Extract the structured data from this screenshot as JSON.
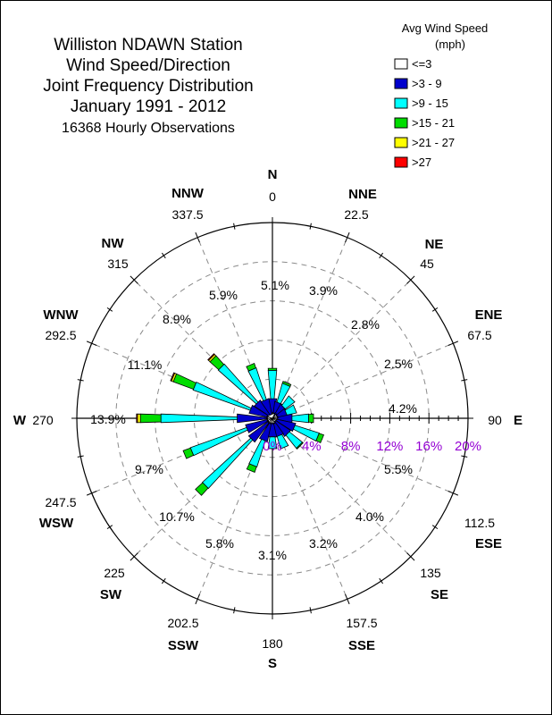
{
  "title": {
    "lines": [
      "Williston NDAWN Station",
      "Wind Speed/Direction",
      "Joint Frequency Distribution",
      "January 1991 - 2012",
      "16368 Hourly Observations"
    ]
  },
  "legend": {
    "title_lines": [
      "Avg Wind Speed",
      "(mph)"
    ],
    "items": [
      {
        "label": "<=3",
        "color": "#ffffff"
      },
      {
        "label": ">3 - 9",
        "color": "#0000cc"
      },
      {
        "label": ">9 - 15",
        "color": "#00ffff"
      },
      {
        "label": ">15 - 21",
        "color": "#00dd00"
      },
      {
        "label": ">21 - 27",
        "color": "#ffff00"
      },
      {
        "label": ">27",
        "color": "#ff0000"
      }
    ]
  },
  "chart_data": {
    "type": "wind-rose",
    "rmax": 20,
    "rings": [
      4,
      8,
      12,
      16,
      20
    ],
    "scale_labels": [
      "0%",
      "4%",
      "8%",
      "12%",
      "16%",
      "20%"
    ],
    "directions": [
      {
        "abbr": "N",
        "deg": "0",
        "angle": 0,
        "total_label": "5.1%",
        "segments": [
          0.4,
          1.6,
          2.9,
          0.2,
          0.0,
          0.0
        ]
      },
      {
        "abbr": "NNE",
        "deg": "22.5",
        "angle": 22.5,
        "total_label": "3.9%",
        "segments": [
          0.3,
          1.4,
          2.0,
          0.2,
          0.0,
          0.0
        ]
      },
      {
        "abbr": "NE",
        "deg": "45",
        "angle": 45,
        "total_label": "2.8%",
        "segments": [
          0.3,
          1.3,
          1.2,
          0.0,
          0.0,
          0.0
        ]
      },
      {
        "abbr": "ENE",
        "deg": "67.5",
        "angle": 67.5,
        "total_label": "2.5%",
        "segments": [
          0.3,
          1.2,
          1.0,
          0.0,
          0.0,
          0.0
        ]
      },
      {
        "abbr": "E",
        "deg": "90",
        "angle": 90,
        "total_label": "4.2%",
        "segments": [
          0.4,
          1.6,
          1.7,
          0.5,
          0.0,
          0.0
        ]
      },
      {
        "abbr": "ESE",
        "deg": "112.5",
        "angle": 112.5,
        "total_label": "5.5%",
        "segments": [
          0.4,
          2.0,
          2.6,
          0.5,
          0.0,
          0.0
        ]
      },
      {
        "abbr": "SE",
        "deg": "135",
        "angle": 135,
        "total_label": "4.0%",
        "segments": [
          0.4,
          1.8,
          1.7,
          0.1,
          0.0,
          0.0
        ]
      },
      {
        "abbr": "SSE",
        "deg": "157.5",
        "angle": 157.5,
        "total_label": "3.2%",
        "segments": [
          0.3,
          1.6,
          1.3,
          0.0,
          0.0,
          0.0
        ]
      },
      {
        "abbr": "S",
        "deg": "180",
        "angle": 180,
        "total_label": "3.1%",
        "segments": [
          0.3,
          1.6,
          1.2,
          0.0,
          0.0,
          0.0
        ]
      },
      {
        "abbr": "SSW",
        "deg": "202.5",
        "angle": 202.5,
        "total_label": "5.8%",
        "segments": [
          0.4,
          2.0,
          2.8,
          0.6,
          0.0,
          0.0
        ]
      },
      {
        "abbr": "SW",
        "deg": "225",
        "angle": 225,
        "total_label": "10.7%",
        "segments": [
          0.4,
          2.6,
          6.7,
          1.0,
          0.0,
          0.0
        ]
      },
      {
        "abbr": "WSW",
        "deg": "247.5",
        "angle": 247.5,
        "total_label": "9.7%",
        "segments": [
          0.4,
          2.4,
          6.1,
          0.8,
          0.0,
          0.0
        ]
      },
      {
        "abbr": "W",
        "deg": "270",
        "angle": 270,
        "total_label": "13.9%",
        "segments": [
          0.4,
          3.2,
          7.8,
          2.1,
          0.3,
          0.1
        ]
      },
      {
        "abbr": "WNW",
        "deg": "292.5",
        "angle": 292.5,
        "total_label": "11.1%",
        "segments": [
          0.4,
          2.0,
          6.2,
          2.2,
          0.2,
          0.1
        ]
      },
      {
        "abbr": "NW",
        "deg": "315",
        "angle": 315,
        "total_label": "8.9%",
        "segments": [
          0.4,
          1.8,
          5.2,
          1.2,
          0.2,
          0.1
        ]
      },
      {
        "abbr": "NNW",
        "deg": "337.5",
        "angle": 337.5,
        "total_label": "5.9%",
        "segments": [
          0.4,
          1.6,
          3.4,
          0.5,
          0.0,
          0.0
        ]
      }
    ]
  }
}
